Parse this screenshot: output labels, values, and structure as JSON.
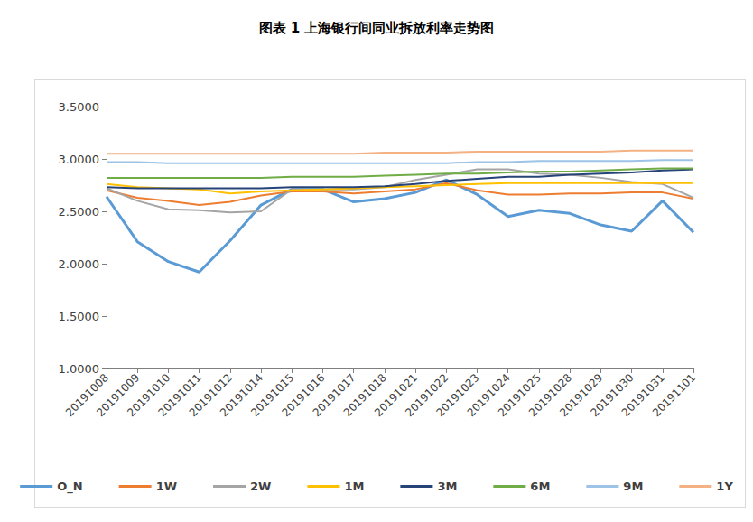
{
  "chart_data": {
    "type": "line",
    "title": "图表 1 上海银行间同业拆放利率走势图",
    "categories": [
      "20191008",
      "20191009",
      "20191010",
      "20191011",
      "20191012",
      "20191014",
      "20191015",
      "20191016",
      "20191017",
      "20191018",
      "20191021",
      "20191022",
      "20191023",
      "20191024",
      "20191025",
      "20191028",
      "20191029",
      "20191030",
      "20191031",
      "20191101"
    ],
    "series": [
      {
        "name": "O_N",
        "color": "#5B9BD5",
        "values": [
          2.64,
          2.21,
          2.02,
          1.92,
          2.22,
          2.56,
          2.71,
          2.71,
          2.59,
          2.62,
          2.68,
          2.8,
          2.66,
          2.45,
          2.51,
          2.48,
          2.37,
          2.31,
          2.6,
          2.3
        ]
      },
      {
        "name": "1W",
        "color": "#ED7D31",
        "values": [
          2.7,
          2.63,
          2.6,
          2.56,
          2.59,
          2.65,
          2.69,
          2.69,
          2.67,
          2.69,
          2.71,
          2.77,
          2.7,
          2.66,
          2.66,
          2.67,
          2.67,
          2.68,
          2.68,
          2.62
        ]
      },
      {
        "name": "2W",
        "color": "#A5A5A5",
        "values": [
          2.72,
          2.6,
          2.52,
          2.51,
          2.49,
          2.5,
          2.71,
          2.71,
          2.71,
          2.73,
          2.8,
          2.85,
          2.9,
          2.9,
          2.86,
          2.85,
          2.82,
          2.78,
          2.76,
          2.63
        ]
      },
      {
        "name": "1M",
        "color": "#FFC000",
        "values": [
          2.76,
          2.73,
          2.72,
          2.71,
          2.67,
          2.69,
          2.7,
          2.71,
          2.72,
          2.73,
          2.74,
          2.75,
          2.76,
          2.77,
          2.77,
          2.77,
          2.77,
          2.77,
          2.77,
          2.77
        ]
      },
      {
        "name": "3M",
        "color": "#264478",
        "values": [
          2.73,
          2.72,
          2.72,
          2.72,
          2.72,
          2.72,
          2.73,
          2.73,
          2.73,
          2.74,
          2.76,
          2.79,
          2.81,
          2.83,
          2.83,
          2.85,
          2.86,
          2.87,
          2.89,
          2.9
        ]
      },
      {
        "name": "6M",
        "color": "#70AD47",
        "values": [
          2.82,
          2.82,
          2.82,
          2.82,
          2.82,
          2.82,
          2.83,
          2.83,
          2.83,
          2.84,
          2.85,
          2.86,
          2.86,
          2.87,
          2.88,
          2.88,
          2.89,
          2.9,
          2.91,
          2.91
        ]
      },
      {
        "name": "9M",
        "color": "#9DC3E6",
        "values": [
          2.97,
          2.97,
          2.96,
          2.96,
          2.96,
          2.96,
          2.96,
          2.96,
          2.96,
          2.96,
          2.96,
          2.96,
          2.97,
          2.97,
          2.98,
          2.98,
          2.98,
          2.98,
          2.99,
          2.99
        ]
      },
      {
        "name": "1Y",
        "color": "#F4B183",
        "values": [
          3.05,
          3.05,
          3.05,
          3.05,
          3.05,
          3.05,
          3.05,
          3.05,
          3.05,
          3.06,
          3.06,
          3.06,
          3.07,
          3.07,
          3.07,
          3.07,
          3.07,
          3.08,
          3.08,
          3.08
        ]
      }
    ],
    "ylim": [
      1,
      3.5
    ],
    "yticks": [
      {
        "value": 1,
        "label": "1.0000"
      },
      {
        "value": 1.5,
        "label": "1.5000"
      },
      {
        "value": 2,
        "label": "2.0000"
      },
      {
        "value": 2.5,
        "label": "2.5000"
      },
      {
        "value": 3,
        "label": "3.0000"
      },
      {
        "value": 3.5,
        "label": "3.5000"
      }
    ],
    "grid": false,
    "legend": "bottom"
  }
}
